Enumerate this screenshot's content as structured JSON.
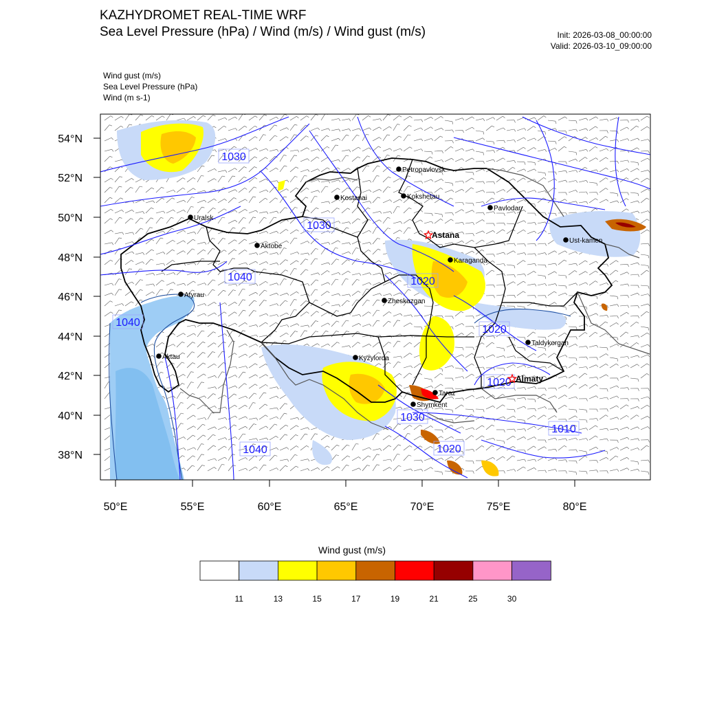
{
  "header": {
    "title": "KAZHYDROMET REAL-TIME WRF",
    "subtitle": "Sea Level Pressure  (hPa) / Wind  (m/s) / Wind gust  (m/s)",
    "init": "Init: 2026-03-08_00:00:00",
    "valid": "Valid: 2026-03-10_09:00:00"
  },
  "fields_legend": [
    "Wind gust   (m/s)",
    "Sea Level Pressure   (hPa)",
    "Wind   (m s-1)"
  ],
  "axes": {
    "lat_labels": [
      "54°N",
      "52°N",
      "50°N",
      "48°N",
      "46°N",
      "44°N",
      "42°N",
      "40°N",
      "38°N"
    ],
    "lon_labels": [
      "50°E",
      "55°E",
      "60°E",
      "65°E",
      "70°E",
      "75°E",
      "80°E"
    ]
  },
  "cities": [
    {
      "name": "Petropavlovsk",
      "capital": false
    },
    {
      "name": "Kostanai",
      "capital": false
    },
    {
      "name": "Kokshetau",
      "capital": false
    },
    {
      "name": "Pavlodar",
      "capital": false
    },
    {
      "name": "Uralsk",
      "capital": false
    },
    {
      "name": "Aktobe",
      "capital": false
    },
    {
      "name": "Astana",
      "capital": true
    },
    {
      "name": "Karaganda",
      "capital": false
    },
    {
      "name": "Ust-kamen",
      "capital": false
    },
    {
      "name": "Atyrau",
      "capital": false
    },
    {
      "name": "Zheskazgan",
      "capital": false
    },
    {
      "name": "Taldykorgan",
      "capital": false
    },
    {
      "name": "Aktau",
      "capital": false
    },
    {
      "name": "Kyzylorda",
      "capital": false
    },
    {
      "name": "Almaty",
      "capital": true
    },
    {
      "name": "Taraz",
      "capital": false
    },
    {
      "name": "Shymkent",
      "capital": false
    }
  ],
  "isobar_labels": [
    "1030",
    "1030",
    "1040",
    "1040",
    "1020",
    "1020",
    "1020",
    "1030",
    "1020",
    "1010",
    "1040"
  ],
  "colorbar": {
    "title": "Wind gust (m/s)",
    "labels": [
      "11",
      "13",
      "15",
      "17",
      "19",
      "21",
      "25",
      "30"
    ],
    "colors": [
      "#ffffff",
      "#c8daf8",
      "#ffff00",
      "#ffc800",
      "#c86400",
      "#ff0000",
      "#960000",
      "#ff96c8",
      "#9664c8"
    ]
  },
  "colors": {
    "isobar": "#1a1aff",
    "border": "#000000",
    "coast": "#2050a0",
    "capital_star": "#ff0000"
  }
}
